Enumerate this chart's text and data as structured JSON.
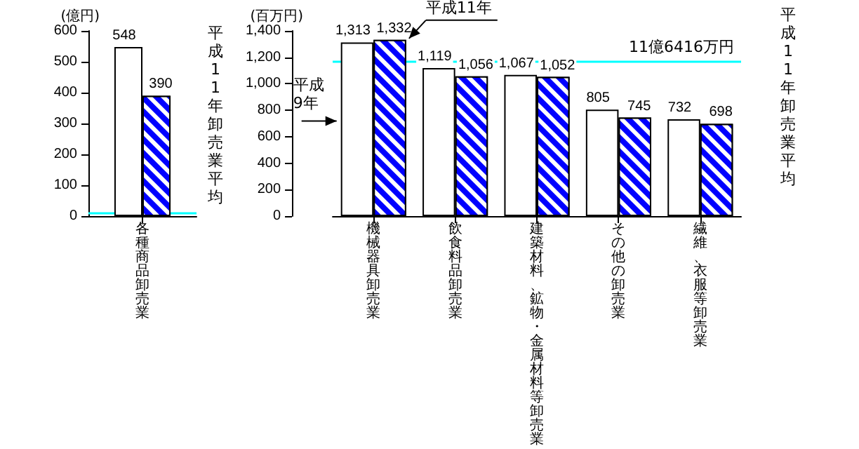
{
  "chart_data": [
    {
      "type": "bar",
      "ylabel": "(億円)",
      "categories": [
        "各種商品卸売業"
      ],
      "series": [
        {
          "color": "#ffffff",
          "values": [
            548
          ],
          "value_labels": [
            "548"
          ]
        },
        {
          "color": "#0000ff",
          "values": [
            390
          ],
          "value_labels": [
            "390"
          ]
        }
      ],
      "ylim": [
        0,
        600
      ],
      "yticks": [
        0,
        100,
        200,
        300,
        400,
        500,
        600
      ],
      "ref_lines": [
        {
          "axis": "y",
          "value": 11.6416,
          "label": "平成11年卸売業平均",
          "color": "#00ffff"
        }
      ]
    },
    {
      "type": "bar",
      "ylabel": "(百万円)",
      "categories": [
        "機械器具卸売業",
        "飲食料品卸売業",
        "建築材料、鉱物・金属材料等卸売業",
        "その他の卸売業",
        "繊維、衣服等卸売業"
      ],
      "series": [
        {
          "name": "平成9年",
          "color": "#ffffff",
          "values": [
            1313,
            1119,
            1067,
            805,
            732
          ],
          "value_labels": [
            "1,313",
            "1,119",
            "1,067",
            "805",
            "732"
          ]
        },
        {
          "name": "平成11年",
          "color": "#0000ff",
          "values": [
            1332,
            1056,
            1052,
            745,
            698
          ],
          "value_labels": [
            "1,332",
            "1,056",
            "1,052",
            "745",
            "698"
          ]
        }
      ],
      "ylim": [
        0,
        1400
      ],
      "yticks": [
        0,
        200,
        400,
        600,
        800,
        {
          "value": 1000,
          "label": "1,000"
        },
        {
          "value": 1200,
          "label": "1,200"
        },
        {
          "value": 1400,
          "label": "1,400"
        }
      ],
      "ref_lines": [
        {
          "axis": "y",
          "value": 1164.16,
          "label": "11億6416万円",
          "color": "#00ffff"
        }
      ],
      "annotations": [
        "平成11年卸売業平均"
      ]
    }
  ]
}
